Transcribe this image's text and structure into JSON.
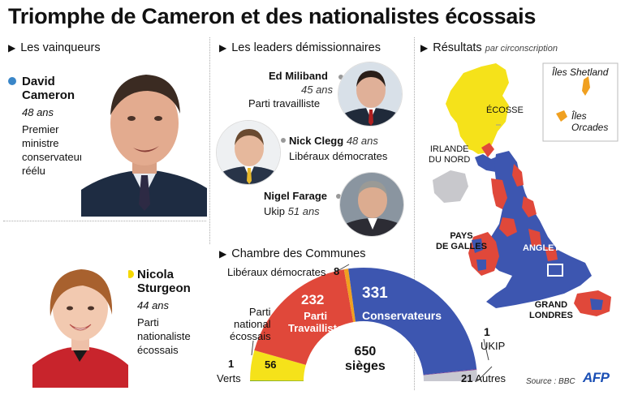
{
  "title": "Triomphe de Cameron et des nationalistes écossais",
  "sections": {
    "winners": "Les vainqueurs",
    "leaders": "Les leaders démissionnaires",
    "results": "Résultats",
    "results_sub": "par circonscription",
    "chamber": "Chambre des Communes"
  },
  "winners": [
    {
      "name1": "David",
      "name2": "Cameron",
      "age": "48 ans",
      "desc": [
        "Premier",
        "ministre",
        "conservateur",
        "réélu"
      ],
      "color": "#3a86c8"
    },
    {
      "name1": "Nicola",
      "name2": "Sturgeon",
      "age": "44 ans",
      "desc": [
        "Parti",
        "nationaliste",
        "écossais"
      ],
      "color": "#f5d800"
    }
  ],
  "leaders": [
    {
      "name": "Ed Miliband",
      "age": "45 ans",
      "party": "Parti travailliste"
    },
    {
      "name": "Nick Clegg",
      "age": "48 ans",
      "party": "Libéraux démocrates"
    },
    {
      "name": "Nigel Farage",
      "age": "51 ans",
      "party": "Ukip"
    }
  ],
  "map_labels": {
    "ecosse": "ÉCOSSE",
    "irlande1": "IRLANDE",
    "irlande2": "DU NORD",
    "galles1": "PAYS",
    "galles2": "DE GALLES",
    "angleterre": "ANGLETERRE",
    "londres1": "GRAND",
    "londres2": "LONDRES",
    "shetland": "Îles Shetland",
    "orcades1": "Îles",
    "orcades2": "Orcades"
  },
  "chart_data": {
    "type": "pie",
    "subtype": "semicircle parliament",
    "title": "Chambre des Communes",
    "total": "650",
    "total_label": "sièges",
    "series": [
      {
        "name": "Verts",
        "value": 1,
        "color": "#2e8b3c"
      },
      {
        "name": "Parti national écossais",
        "value": 56,
        "color": "#f5e21a"
      },
      {
        "name": "Parti Travailliste",
        "value": 232,
        "color": "#e0483a"
      },
      {
        "name": "Libéraux démocrates",
        "value": 8,
        "color": "#f0a020"
      },
      {
        "name": "Conservateurs",
        "value": 331,
        "color": "#3d56b0"
      },
      {
        "name": "UKIP",
        "value": 1,
        "color": "#7a2d8c"
      },
      {
        "name": "Autres",
        "value": 21,
        "color": "#c8c8d0"
      }
    ],
    "labels": {
      "ld": "Libéraux démocrates",
      "ld_val": "8",
      "pt_val": "232",
      "pt1": "Parti",
      "pt2": "Travailliste",
      "con_val": "331",
      "con": "Conservateurs",
      "snp1": "Parti",
      "snp2": "national",
      "snp3": "écossais",
      "snp_val": "56",
      "verts_val": "1",
      "verts": "Verts",
      "ukip_val": "1",
      "ukip": "UKIP",
      "autres_val": "21",
      "autres": "Autres"
    }
  },
  "source": "Source : BBC",
  "logo": "AFP"
}
